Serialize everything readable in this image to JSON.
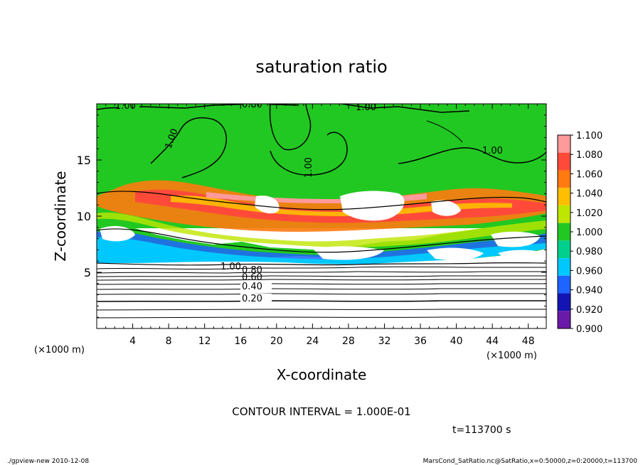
{
  "chart_data": {
    "type": "heatmap",
    "title": "saturation ratio",
    "xlabel": "X-coordinate",
    "ylabel": "Z-coordinate",
    "x_unit": "(×1000 m)",
    "z_unit": "(×1000 m)",
    "xlim": [
      0,
      50
    ],
    "ylim": [
      0,
      20
    ],
    "x_ticks": [
      4,
      8,
      12,
      16,
      20,
      24,
      28,
      32,
      36,
      40,
      44,
      48
    ],
    "y_ticks": [
      5,
      10,
      15
    ],
    "contour_interval_text": "CONTOUR INTERVAL = 1.000E-01",
    "contour_labels": [
      "1.00",
      "0.80",
      "1.00",
      "1.00",
      "1.00",
      "1.00",
      "1.00",
      "0.80",
      "0.60",
      "0.40",
      "0.20"
    ],
    "colorbar": {
      "levels": [
        "1.100",
        "1.080",
        "1.060",
        "1.040",
        "1.020",
        "1.000",
        "0.980",
        "0.960",
        "0.940",
        "0.920",
        "0.900"
      ],
      "colors": [
        "#ff9a9a",
        "#ff4a3a",
        "#ff7a10",
        "#ffbf00",
        "#bfe600",
        "#22c822",
        "#00d08c",
        "#00c8ff",
        "#1e64ff",
        "#1414b4",
        "#6a1aa8"
      ]
    },
    "time_label": "t=113700 s",
    "footer_left": "./gpview-new  2010-12-08",
    "footer_right": "MarsCond_SatRatio.nc@SatRatio,x=0:50000,z=0:20000,t=113700"
  }
}
